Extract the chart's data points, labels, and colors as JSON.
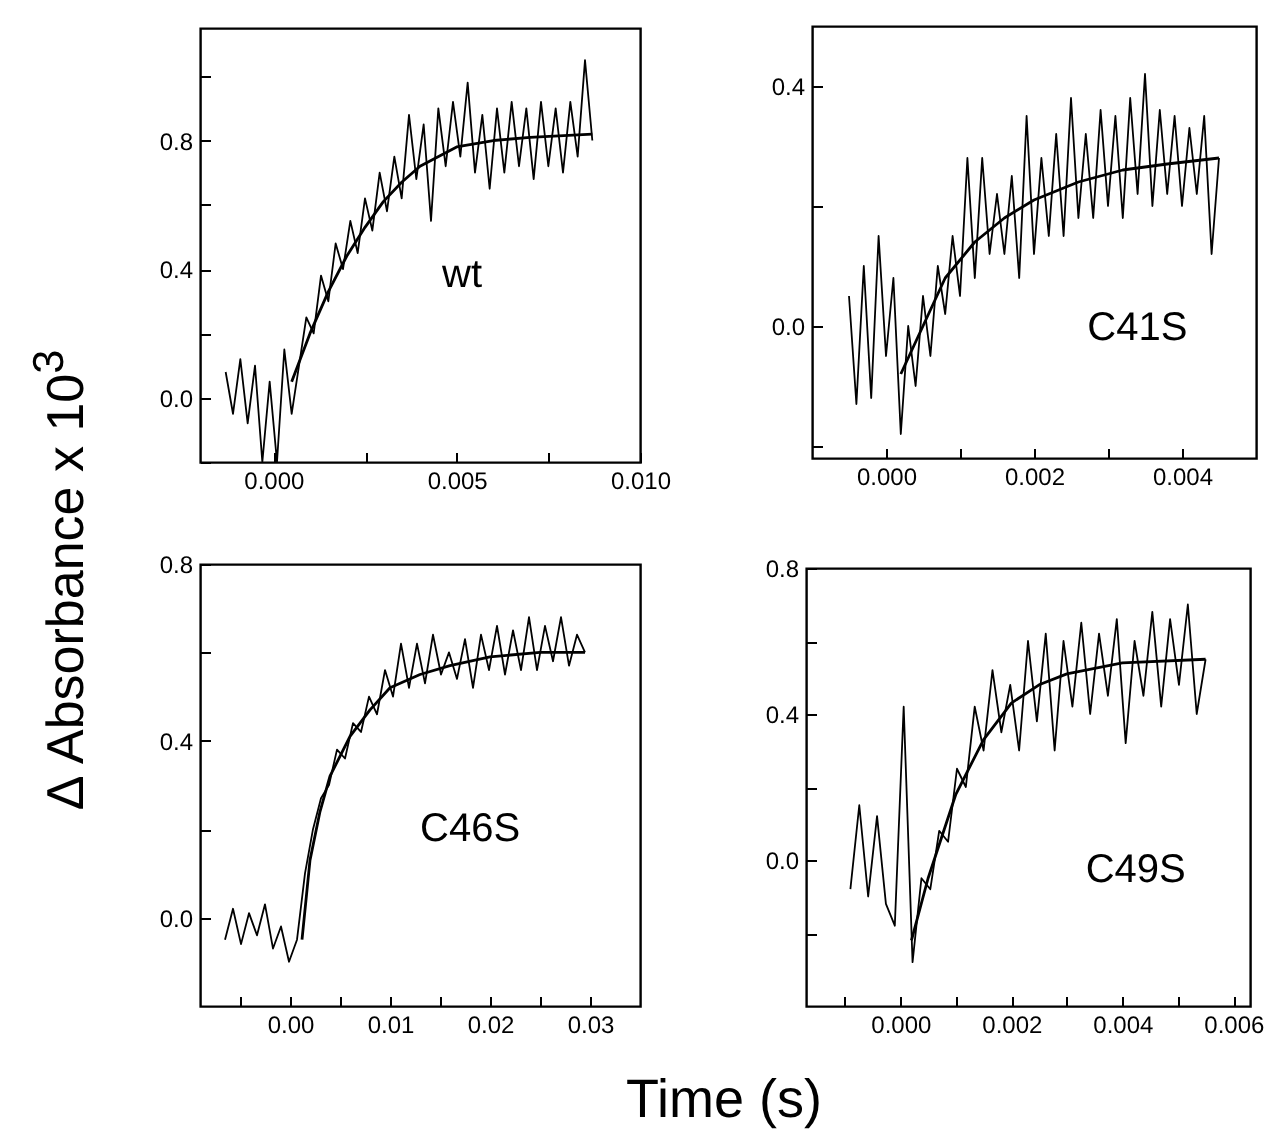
{
  "chart_data": [
    {
      "type": "line",
      "ylabel": "Δ Absorbance x 10$^{3}$",
      "grid": false,
      "marker": "none",
      "xlim": [
        -0.002,
        0.01
      ],
      "ylim": [
        -0.2,
        1.15
      ],
      "xticks": [
        {
          "value": 0,
          "label": "0.000"
        },
        {
          "value": 0.0025,
          "label": null
        },
        {
          "value": 0.005,
          "label": "0.005"
        },
        {
          "value": 0.0075,
          "label": null
        },
        {
          "value": 0.01,
          "label": "0.010"
        }
      ],
      "yticks": [
        {
          "value": -0.2,
          "label": null
        },
        {
          "value": 0,
          "label": "0.0"
        },
        {
          "value": 0.2,
          "label": null
        },
        {
          "value": 0.4,
          "label": "0.4"
        },
        {
          "value": 0.6,
          "label": null
        },
        {
          "value": 0.8,
          "label": "0.8"
        },
        {
          "value": 1.0,
          "label": null
        }
      ],
      "annotations": [
        "wt"
      ],
      "series": [
        {
          "color": "#000000",
          "x": [
            -0.0013,
            -0.0011,
            -0.0009,
            -0.0007,
            -0.0005,
            -0.0003,
            -0.0001,
            0.0001,
            0.0003,
            0.0005,
            0.0007,
            0.0009,
            0.0011,
            0.0013,
            0.0015,
            0.0017,
            0.0019,
            0.0021,
            0.0023,
            0.0025,
            0.0027,
            0.0029,
            0.0031,
            0.0033,
            0.0035,
            0.0037,
            0.0039,
            0.0041,
            0.0043,
            0.0045,
            0.0047,
            0.0049,
            0.0051,
            0.0053,
            0.0055,
            0.0057,
            0.0059,
            0.0061,
            0.0063,
            0.0065,
            0.0067,
            0.0069,
            0.0071,
            0.0073,
            0.0075,
            0.0077,
            0.0079,
            0.0081,
            0.0083,
            0.0085,
            0.0087
          ],
          "values": [
            0.08,
            -0.05,
            0.12,
            -0.08,
            0.1,
            -0.2,
            0.05,
            -0.2,
            0.15,
            -0.05,
            0.1,
            0.25,
            0.2,
            0.38,
            0.3,
            0.48,
            0.4,
            0.55,
            0.45,
            0.62,
            0.52,
            0.7,
            0.58,
            0.75,
            0.62,
            0.88,
            0.68,
            0.85,
            0.55,
            0.9,
            0.72,
            0.92,
            0.75,
            0.98,
            0.7,
            0.88,
            0.65,
            0.9,
            0.7,
            0.92,
            0.72,
            0.9,
            0.68,
            0.92,
            0.72,
            0.9,
            0.7,
            0.92,
            0.75,
            1.05,
            0.8
          ]
        },
        {
          "color": "#000000",
          "x": [
            0.0005,
            0.001,
            0.0015,
            0.002,
            0.0025,
            0.003,
            0.0035,
            0.004,
            0.005,
            0.006,
            0.007,
            0.0087
          ],
          "values": [
            0.05,
            0.2,
            0.33,
            0.44,
            0.53,
            0.61,
            0.67,
            0.72,
            0.78,
            0.8,
            0.81,
            0.82
          ]
        }
      ]
    },
    {
      "type": "line",
      "grid": false,
      "marker": "none",
      "xlim": [
        -0.001,
        0.005
      ],
      "ylim": [
        -0.22,
        0.5
      ],
      "xticks": [
        {
          "value": 0,
          "label": "0.000"
        },
        {
          "value": 0.001,
          "label": null
        },
        {
          "value": 0.002,
          "label": "0.002"
        },
        {
          "value": 0.003,
          "label": null
        },
        {
          "value": 0.004,
          "label": "0.004"
        }
      ],
      "yticks": [
        {
          "value": -0.2,
          "label": null
        },
        {
          "value": 0,
          "label": "0.0"
        },
        {
          "value": 0.2,
          "label": null
        },
        {
          "value": 0.4,
          "label": "0.4"
        }
      ],
      "annotations": [
        "C41S"
      ],
      "series": [
        {
          "color": "#000000",
          "x": [
            -0.0005,
            -0.0004,
            -0.0003,
            -0.0002,
            -0.0001,
            0,
            0.0001,
            0.0002,
            0.0003,
            0.0004,
            0.0005,
            0.0006,
            0.0007,
            0.0008,
            0.0009,
            0.001,
            0.0011,
            0.0012,
            0.0013,
            0.0014,
            0.0015,
            0.0016,
            0.0017,
            0.0018,
            0.0019,
            0.002,
            0.0021,
            0.0022,
            0.0023,
            0.0024,
            0.0025,
            0.0026,
            0.0027,
            0.0028,
            0.0029,
            0.003,
            0.0031,
            0.0032,
            0.0033,
            0.0034,
            0.0035,
            0.0036,
            0.0037,
            0.0038,
            0.0039,
            0.004,
            0.0041,
            0.0042,
            0.0043,
            0.0044,
            0.0045
          ],
          "values": [
            0.05,
            -0.13,
            0.1,
            -0.12,
            0.15,
            -0.05,
            0.08,
            -0.18,
            0.0,
            -0.1,
            0.05,
            -0.05,
            0.1,
            0.02,
            0.15,
            0.05,
            0.28,
            0.08,
            0.28,
            0.12,
            0.22,
            0.12,
            0.25,
            0.08,
            0.35,
            0.12,
            0.28,
            0.15,
            0.32,
            0.15,
            0.38,
            0.18,
            0.32,
            0.18,
            0.36,
            0.2,
            0.35,
            0.18,
            0.38,
            0.22,
            0.42,
            0.2,
            0.36,
            0.22,
            0.35,
            0.2,
            0.33,
            0.22,
            0.35,
            0.12,
            0.28
          ]
        },
        {
          "color": "#000000",
          "x": [
            0.0002,
            0.0005,
            0.0008,
            0.0012,
            0.0016,
            0.002,
            0.0026,
            0.0032,
            0.0038,
            0.0045
          ],
          "values": [
            -0.08,
            0.0,
            0.08,
            0.14,
            0.18,
            0.21,
            0.24,
            0.26,
            0.27,
            0.28
          ]
        }
      ]
    },
    {
      "type": "line",
      "xlabel": "Time (s)",
      "grid": false,
      "marker": "none",
      "xlim": [
        -0.009,
        0.035
      ],
      "ylim": [
        -0.2,
        0.8
      ],
      "xticks": [
        {
          "value": -0.005,
          "label": null
        },
        {
          "value": 0,
          "label": "0.00"
        },
        {
          "value": 0.005,
          "label": null
        },
        {
          "value": 0.01,
          "label": "0.01"
        },
        {
          "value": 0.015,
          "label": null
        },
        {
          "value": 0.02,
          "label": "0.02"
        },
        {
          "value": 0.025,
          "label": null
        },
        {
          "value": 0.03,
          "label": "0.03"
        }
      ],
      "yticks": [
        {
          "value": 0,
          "label": "0.0"
        },
        {
          "value": 0.2,
          "label": null
        },
        {
          "value": 0.4,
          "label": "0.4"
        },
        {
          "value": 0.6,
          "label": null
        },
        {
          "value": 0.8,
          "label": "0.8"
        }
      ],
      "annotations": [
        "C46S"
      ],
      "series": [
        {
          "color": "#000000",
          "x": [
            -0.0065,
            -0.0057,
            -0.0049,
            -0.0041,
            -0.0033,
            -0.0025,
            -0.0017,
            -0.0009,
            -0.0001,
            0.0007,
            0.0015,
            0.0023,
            0.0031,
            0.0039,
            0.0047,
            0.0055,
            0.0063,
            0.0071,
            0.0079,
            0.0087,
            0.0095,
            0.0103,
            0.0111,
            0.0119,
            0.0127,
            0.0135,
            0.0143,
            0.0151,
            0.0159,
            0.0167,
            0.0175,
            0.0183,
            0.0191,
            0.0199,
            0.0207,
            0.0215,
            0.0223,
            0.0231,
            0.0239,
            0.0247,
            0.0255,
            0.0263,
            0.0271,
            0.0279,
            0.0287,
            0.0295
          ],
          "values": [
            -0.05,
            0.02,
            -0.06,
            0.01,
            -0.04,
            0.03,
            -0.07,
            -0.02,
            -0.1,
            -0.05,
            0.1,
            0.2,
            0.27,
            0.3,
            0.38,
            0.36,
            0.44,
            0.42,
            0.5,
            0.46,
            0.56,
            0.5,
            0.62,
            0.52,
            0.62,
            0.53,
            0.64,
            0.55,
            0.6,
            0.54,
            0.63,
            0.52,
            0.64,
            0.56,
            0.66,
            0.55,
            0.65,
            0.56,
            0.68,
            0.56,
            0.66,
            0.58,
            0.68,
            0.57,
            0.64,
            0.6
          ]
        },
        {
          "color": "#000000",
          "x": [
            0.0012,
            0.002,
            0.003,
            0.004,
            0.006,
            0.008,
            0.01,
            0.013,
            0.016,
            0.02,
            0.025,
            0.0295
          ],
          "values": [
            -0.05,
            0.13,
            0.24,
            0.32,
            0.41,
            0.47,
            0.52,
            0.55,
            0.57,
            0.59,
            0.6,
            0.6
          ]
        }
      ]
    },
    {
      "type": "line",
      "grid": false,
      "marker": "none",
      "xlim": [
        -0.0017,
        0.0063
      ],
      "ylim": [
        -0.4,
        0.8
      ],
      "xticks": [
        {
          "value": -0.001,
          "label": null
        },
        {
          "value": 0,
          "label": "0.000"
        },
        {
          "value": 0.001,
          "label": null
        },
        {
          "value": 0.002,
          "label": "0.002"
        },
        {
          "value": 0.003,
          "label": null
        },
        {
          "value": 0.004,
          "label": "0.004"
        },
        {
          "value": 0.005,
          "label": null
        },
        {
          "value": 0.006,
          "label": "0.006"
        }
      ],
      "yticks": [
        {
          "value": -0.2,
          "label": null
        },
        {
          "value": 0,
          "label": "0.0"
        },
        {
          "value": 0.2,
          "label": null
        },
        {
          "value": 0.4,
          "label": "0.4"
        },
        {
          "value": 0.6,
          "label": null
        },
        {
          "value": 0.8,
          "label": "0.8"
        }
      ],
      "annotations": [
        "C49S"
      ],
      "series": [
        {
          "color": "#000000",
          "x": [
            -0.0009,
            -0.00074,
            -0.00058,
            -0.00042,
            -0.00026,
            -0.0001,
            6e-05,
            0.00022,
            0.00038,
            0.00054,
            0.0007,
            0.00086,
            0.00102,
            0.00118,
            0.00134,
            0.0015,
            0.00166,
            0.00182,
            0.00198,
            0.00214,
            0.0023,
            0.00246,
            0.00262,
            0.00278,
            0.00294,
            0.0031,
            0.00326,
            0.00342,
            0.00358,
            0.00374,
            0.0039,
            0.00406,
            0.00422,
            0.00438,
            0.00454,
            0.0047,
            0.00486,
            0.00502,
            0.00518,
            0.00534,
            0.0055
          ],
          "values": [
            -0.08,
            0.15,
            -0.1,
            0.12,
            -0.12,
            -0.18,
            0.42,
            -0.28,
            -0.05,
            -0.08,
            0.08,
            0.05,
            0.25,
            0.2,
            0.42,
            0.3,
            0.52,
            0.35,
            0.48,
            0.3,
            0.6,
            0.38,
            0.62,
            0.3,
            0.6,
            0.42,
            0.65,
            0.4,
            0.62,
            0.45,
            0.66,
            0.32,
            0.6,
            0.45,
            0.68,
            0.42,
            0.66,
            0.48,
            0.7,
            0.4,
            0.55
          ]
        },
        {
          "color": "#000000",
          "x": [
            0.0002,
            0.0005,
            0.001,
            0.0015,
            0.002,
            0.0025,
            0.003,
            0.004,
            0.0055
          ],
          "values": [
            -0.22,
            -0.05,
            0.18,
            0.33,
            0.43,
            0.48,
            0.51,
            0.54,
            0.55
          ]
        }
      ]
    }
  ]
}
